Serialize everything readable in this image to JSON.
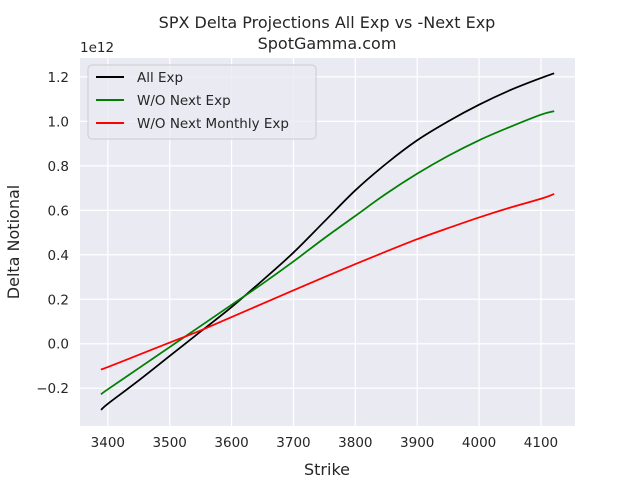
{
  "chart_data": {
    "type": "line",
    "title": "SPX Delta Projections All Exp vs -Next Exp",
    "subtitle": "SpotGamma.com",
    "xlabel": "Strike",
    "ylabel": "Delta Notional",
    "y_offset_label": "1e12",
    "xlim": [
      3355,
      4155
    ],
    "ylim": [
      -0.37,
      1.285
    ],
    "x_ticks": [
      3400,
      3500,
      3600,
      3700,
      3800,
      3900,
      4000,
      4100
    ],
    "x_tick_labels": [
      "3400",
      "3500",
      "3600",
      "3700",
      "3800",
      "3900",
      "4000",
      "4100"
    ],
    "y_ticks": [
      -0.2,
      0.0,
      0.2,
      0.4,
      0.6,
      0.8,
      1.0,
      1.2
    ],
    "y_tick_labels": [
      "−0.2",
      "0.0",
      "0.2",
      "0.4",
      "0.6",
      "0.8",
      "1.0",
      "1.2"
    ],
    "grid": true,
    "legend_position": "top-left",
    "background_color": "#eaeaf2",
    "grid_color": "#ffffff",
    "x": [
      3390,
      3400,
      3450,
      3500,
      3550,
      3600,
      3650,
      3700,
      3750,
      3800,
      3850,
      3900,
      3950,
      4000,
      4050,
      4100,
      4120
    ],
    "series": [
      {
        "name": "All Exp",
        "color": "#000000",
        "values": [
          -0.295,
          -0.27,
          -0.165,
          -0.055,
          0.055,
          0.165,
          0.285,
          0.41,
          0.55,
          0.69,
          0.81,
          0.915,
          1.0,
          1.075,
          1.14,
          1.195,
          1.215
        ]
      },
      {
        "name": "W/O Next Exp",
        "color": "#008000",
        "values": [
          -0.225,
          -0.205,
          -0.11,
          -0.015,
          0.08,
          0.175,
          0.27,
          0.37,
          0.475,
          0.575,
          0.675,
          0.765,
          0.845,
          0.915,
          0.975,
          1.03,
          1.045
        ]
      },
      {
        "name": "W/O Next Monthly Exp",
        "color": "#ff0000",
        "values": [
          -0.115,
          -0.105,
          -0.05,
          0.005,
          0.06,
          0.12,
          0.18,
          0.24,
          0.3,
          0.358,
          0.415,
          0.47,
          0.52,
          0.568,
          0.612,
          0.652,
          0.672
        ]
      }
    ]
  }
}
